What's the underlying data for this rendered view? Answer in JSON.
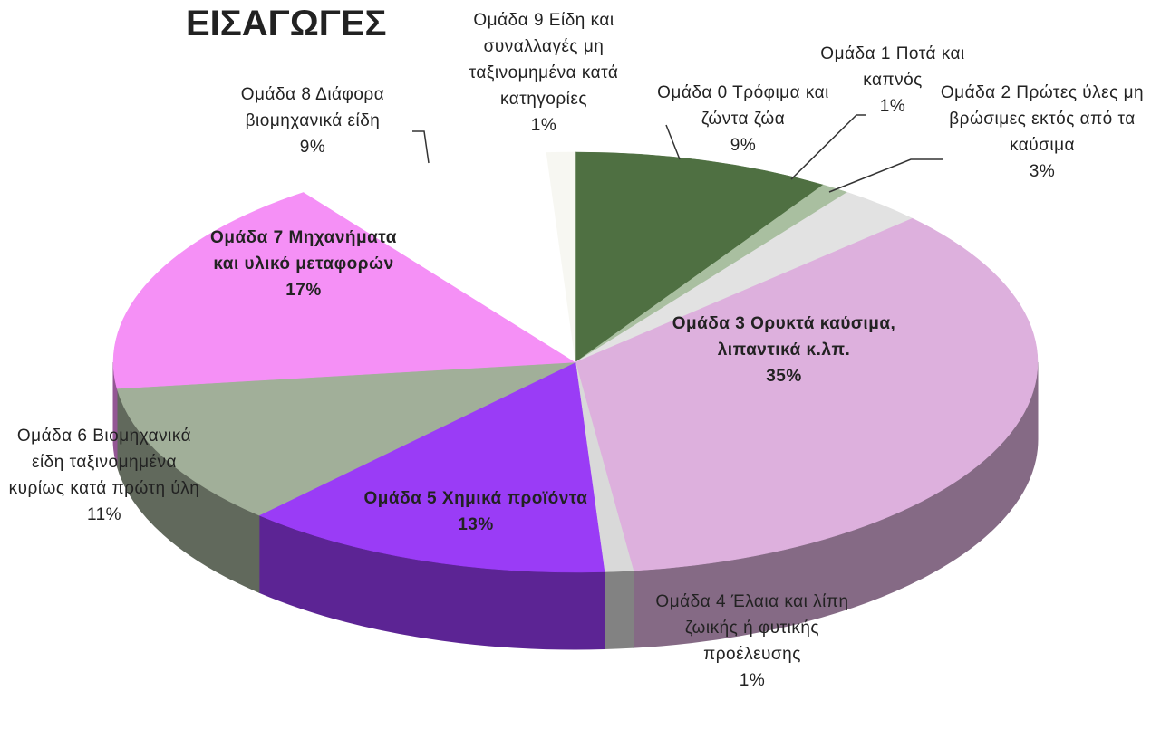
{
  "chart_data": {
    "type": "pie",
    "title": "ΕΙΣΑΓΩΓΕΣ",
    "three_d": true,
    "categories": [
      "Ομάδα 0 Τρόφιμα και ζώντα ζώα",
      "Ομάδα 1 Ποτά και καπνός",
      "Ομάδα 2 Πρώτες ύλες μη βρώσιμες εκτός από τα καύσιμα",
      "Ομάδα 3 Ορυκτά καύσιμα, λιπαντικά κ.λπ.",
      "Ομάδα 4 Έλαια και λίπη ζωικής ή φυτικής προέλευσης",
      "Ομάδα 5 Χημικά προϊόντα",
      "Ομάδα 6 Βιομηχανικά είδη ταξινομημένα κυρίως κατά πρώτη ύλη",
      "Ομάδα 7 Μηχανήματα και υλικό μεταφορών",
      "Ομάδα 8 Διάφορα βιομηχανικά είδη",
      "Ομάδα 9 Είδη και συναλλαγές μη ταξινομημένα κατά κατηγορίες"
    ],
    "values": [
      9,
      1,
      3,
      35,
      1,
      13,
      11,
      17,
      9,
      1
    ],
    "value_labels": [
      "9%",
      "1%",
      "3%",
      "35%",
      "1%",
      "13%",
      "11%",
      "17%",
      "9%",
      "1%"
    ],
    "colors": [
      "#4f7042",
      "#a9bfa0",
      "#e2e2e2",
      "#ddb0dd",
      "#d9d9d9",
      "#9a3cf6",
      "#a1af99",
      "#f590f6",
      "#ffffff",
      "#f7f7f2"
    ]
  }
}
